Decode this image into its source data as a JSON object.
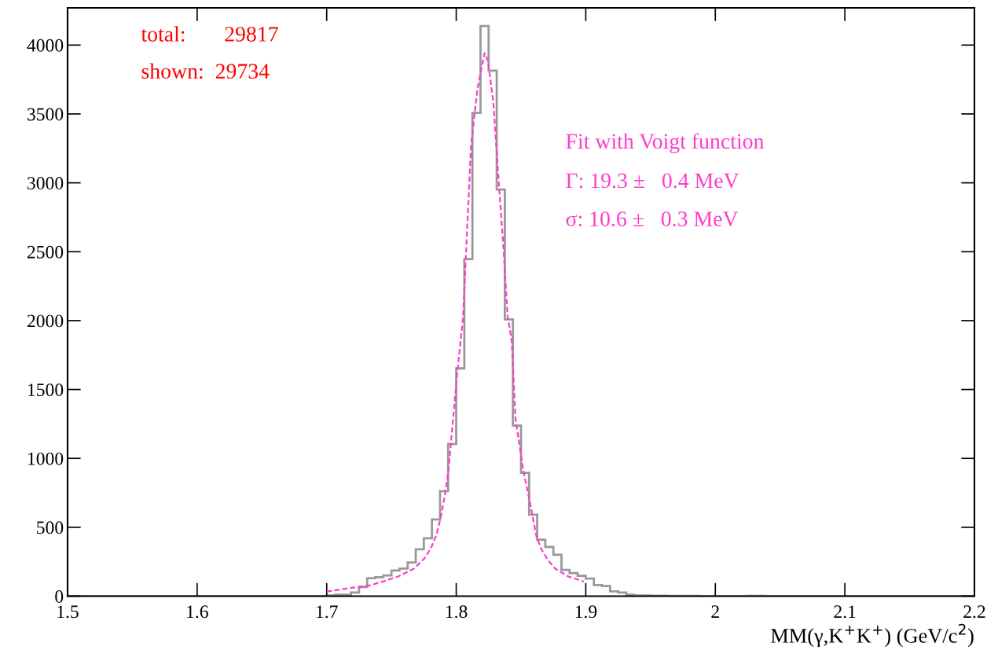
{
  "chart_data": {
    "type": "histogram",
    "xlabel": "MM(γ,K$^{+}$K$^{+}$) (GeV/c$^{2}$)",
    "bins": [
      1.5,
      1.50625,
      1.5125,
      1.51875,
      1.525,
      1.53125,
      1.5375,
      1.54375,
      1.55,
      1.55625,
      1.5625,
      1.56875,
      1.575,
      1.58125,
      1.5875,
      1.59375,
      1.6,
      1.60625,
      1.6125,
      1.61875,
      1.625,
      1.63125,
      1.6375,
      1.64375,
      1.65,
      1.65625,
      1.6625,
      1.66875,
      1.675,
      1.68125,
      1.6875,
      1.69375,
      1.7,
      1.70625,
      1.7125,
      1.71875,
      1.725,
      1.73125,
      1.7375,
      1.74375,
      1.75,
      1.75625,
      1.7625,
      1.76875,
      1.775,
      1.78125,
      1.7875,
      1.79375,
      1.8,
      1.80625,
      1.8125,
      1.81875,
      1.825,
      1.83125,
      1.8375,
      1.84375,
      1.85,
      1.85625,
      1.8625,
      1.86875,
      1.875,
      1.88125,
      1.8875,
      1.89375,
      1.9,
      1.90625,
      1.9125,
      1.91875,
      1.925,
      1.93125,
      1.9375,
      1.94375,
      1.95,
      1.95625,
      1.9625,
      1.96875,
      1.975,
      1.98125,
      1.9875,
      1.99375,
      2.0,
      2.00625,
      2.0125,
      2.01875,
      2.025,
      2.03125,
      2.0375,
      2.04375,
      2.05,
      2.05625,
      2.0625,
      2.06875,
      2.075,
      2.08125,
      2.0875,
      2.09375,
      2.1,
      2.10625,
      2.1125,
      2.11875,
      2.125,
      2.13125,
      2.1375,
      2.14375,
      2.15,
      2.15625,
      2.1625,
      2.16875,
      2.175,
      2.18125,
      2.1875,
      2.19375,
      2.2
    ],
    "values": [
      0,
      0,
      0,
      0,
      0,
      0,
      0,
      0,
      0,
      0,
      0,
      0,
      0,
      0,
      0,
      0,
      0,
      0,
      0,
      0,
      0,
      0,
      0,
      0,
      0,
      0,
      0,
      0,
      0,
      0,
      0,
      0,
      5,
      10,
      10,
      26,
      67,
      130,
      138,
      150,
      186,
      201,
      245,
      340,
      420,
      557,
      762,
      1105,
      1653,
      2447,
      3508,
      4138,
      3814,
      2951,
      2009,
      1238,
      895,
      591,
      410,
      357,
      300,
      191,
      167,
      147,
      128,
      81,
      73,
      35,
      26,
      10,
      5,
      5,
      3,
      3,
      2,
      2,
      2,
      2,
      1,
      1,
      1,
      1,
      1,
      1,
      2,
      2,
      1,
      1,
      1,
      1,
      0,
      0,
      0,
      0,
      0,
      0,
      0,
      0,
      0,
      0,
      0,
      0,
      0,
      0,
      0,
      0,
      0,
      0,
      0,
      0,
      0,
      0
    ],
    "color": "#999999",
    "series": [
      {
        "type": "line",
        "color": "#ff3ccc",
        "line_style": "dashed",
        "x": [
          1.7,
          1.7202,
          1.7313,
          1.7434,
          1.7555,
          1.7676,
          1.7757,
          1.7807,
          1.7848,
          1.7878,
          1.7909,
          1.7939,
          1.8007,
          1.8053,
          1.8114,
          1.8164,
          1.8219,
          1.8245,
          1.8286,
          1.8326,
          1.8366,
          1.8397,
          1.8428,
          1.8458,
          1.8519,
          1.857,
          1.862,
          1.8661,
          1.8711,
          1.8762,
          1.8863,
          1.8984
        ],
        "values": [
          33,
          62,
          73,
          106,
          144,
          201,
          277,
          353,
          448,
          562,
          715,
          905,
          1609,
          2030,
          3265,
          3685,
          3942,
          3884,
          3589,
          3037,
          2504,
          2029,
          1857,
          1286,
          905,
          677,
          429,
          334,
          258,
          201,
          144,
          106
        ]
      }
    ],
    "xlim": [
      1.5,
      2.2
    ],
    "xticks": [
      1.5,
      1.6,
      1.7,
      1.8,
      1.9,
      {
        "value": 2.0,
        "label": "2"
      },
      2.1,
      2.2
    ],
    "ylim": [
      0,
      4270
    ],
    "yticks": [
      0,
      500,
      1000,
      1500,
      2000,
      2500,
      3000,
      3500,
      4000
    ],
    "grid": false,
    "legend": false,
    "annotations": [
      "total:       29817",
      "shown:  29734",
      "Fit with Voigt function",
      "Γ: 19.3 ±   0.4 MeV",
      "σ: 10.6 ±   0.3 MeV"
    ]
  }
}
